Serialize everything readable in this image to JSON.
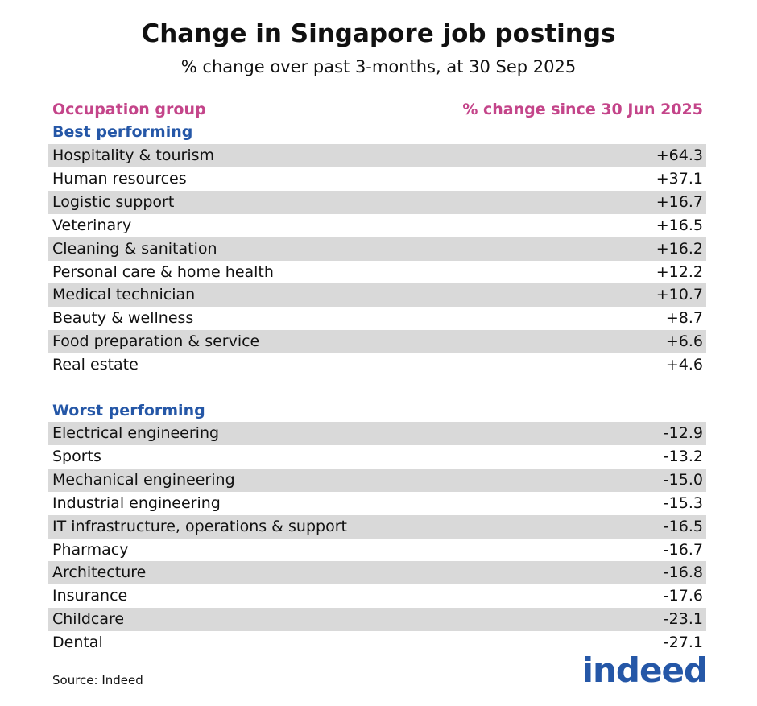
{
  "title": "Change in Singapore job postings",
  "subtitle": "% change over past 3-months, at 30 Sep 2025",
  "table": {
    "header": [
      "Occupation group",
      "% change since 30 Jun 2025"
    ],
    "sections": [
      {
        "heading": "Best performing",
        "rows": [
          [
            "Hospitality & tourism",
            "+64.3"
          ],
          [
            "Human resources",
            "+37.1"
          ],
          [
            "Logistic support",
            "+16.7"
          ],
          [
            "Veterinary",
            "+16.5"
          ],
          [
            "Cleaning & sanitation",
            "+16.2"
          ],
          [
            "Personal care & home health",
            "+12.2"
          ],
          [
            "Medical technician",
            "+10.7"
          ],
          [
            "Beauty & wellness",
            "+8.7"
          ],
          [
            "Food preparation & service",
            "+6.6"
          ],
          [
            "Real estate",
            "+4.6"
          ]
        ]
      },
      {
        "heading": "Worst performing",
        "rows": [
          [
            "Electrical engineering",
            "-12.9"
          ],
          [
            "Sports",
            "-13.2"
          ],
          [
            "Mechanical engineering",
            "-15.0"
          ],
          [
            "Industrial engineering",
            "-15.3"
          ],
          [
            "IT infrastructure, operations & support",
            "-16.5"
          ],
          [
            "Pharmacy",
            "-16.7"
          ],
          [
            "Architecture",
            "-16.8"
          ],
          [
            "Insurance",
            "-17.6"
          ],
          [
            "Childcare",
            "-23.1"
          ],
          [
            "Dental",
            "-27.1"
          ]
        ]
      }
    ]
  },
  "source": "Source: Indeed",
  "logo": "indeed"
}
